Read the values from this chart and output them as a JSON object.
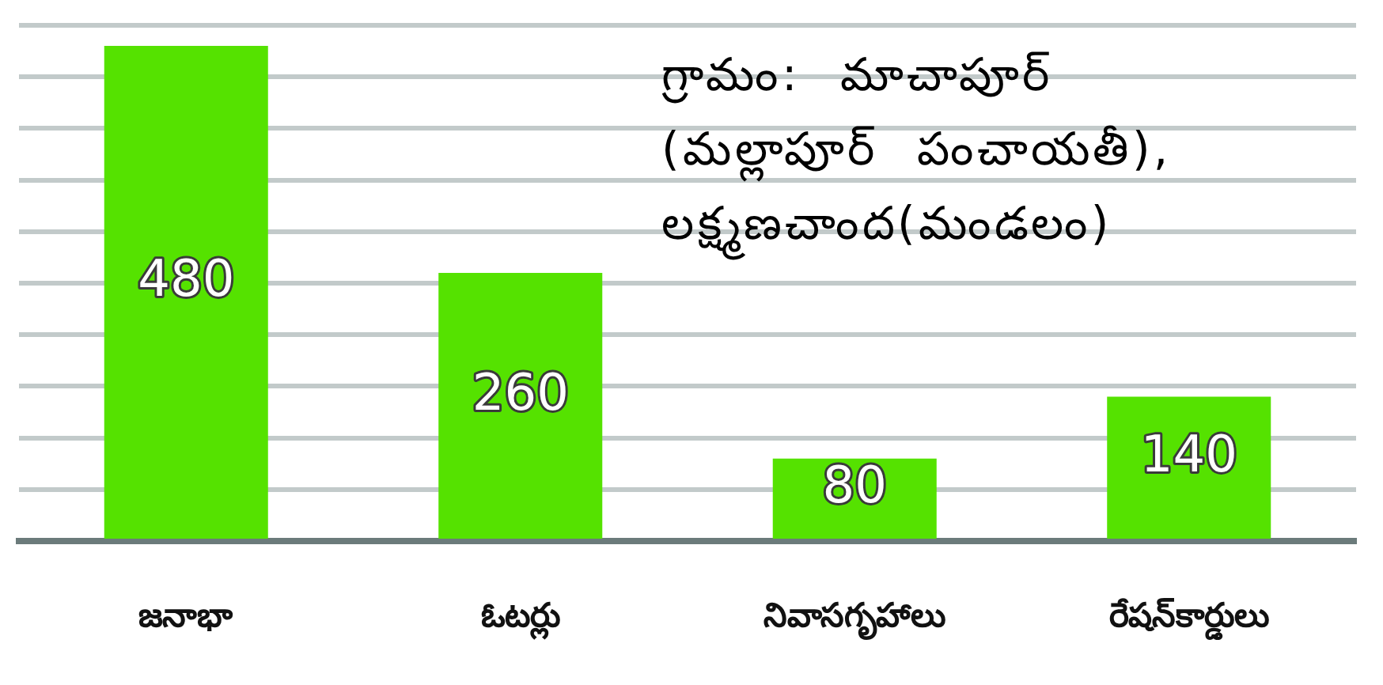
{
  "chart_data": {
    "type": "bar",
    "categories": [
      "జనాభా",
      "ఓటర్లు",
      "నివాసగృహాలు",
      "రేషన్‌కార్డులు"
    ],
    "values": [
      480,
      260,
      80,
      140
    ],
    "color": "#55e200",
    "ylim": [
      0,
      500
    ],
    "yticks": [
      {
        "value": 0,
        "label": null
      },
      {
        "value": 50,
        "label": null
      },
      {
        "value": 100,
        "label": null
      },
      {
        "value": 150,
        "label": null
      },
      {
        "value": 200,
        "label": null
      },
      {
        "value": 250,
        "label": null
      },
      {
        "value": 300,
        "label": null
      },
      {
        "value": 350,
        "label": null
      },
      {
        "value": 400,
        "label": null
      },
      {
        "value": 450,
        "label": null
      },
      {
        "value": 500,
        "label": null
      }
    ],
    "grid": "y",
    "tick_labels": "x",
    "data_labels": true,
    "annotations": [
      "గ్రామం: మాచాపూర్\n(మల్లాపూర్ పంచాయతీ),\nలక్ష్మణచాంద(మండలం)"
    ]
  }
}
